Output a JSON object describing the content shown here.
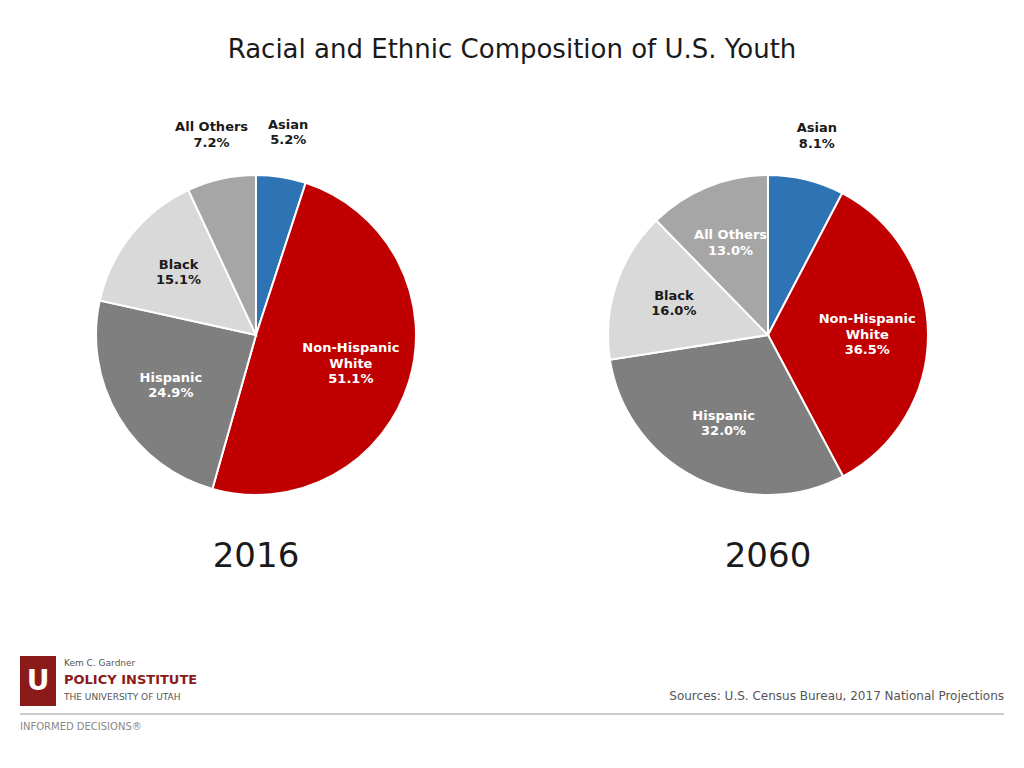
{
  "title": "Racial and Ethnic Composition of U.S. Youth",
  "annotations": [
    "Sources: U.S. Census Bureau, 2017 National Projections",
    "INFORMED DECISIONS®",
    "U",
    "Kem C. Gardner",
    "POLICY INSTITUTE",
    "THE UNIVERSITY OF UTAH"
  ],
  "chart_data": [
    {
      "type": "pie",
      "title": "2016",
      "categories": [
        "Asian",
        "Non-Hispanic\nWhite",
        "Hispanic",
        "Black",
        "All Others"
      ],
      "values": [
        5.2,
        51.1,
        24.9,
        15.1,
        7.2
      ],
      "value_labels": [
        "5.2%",
        "51.1%",
        "24.9%",
        "15.1%",
        "7.2%"
      ],
      "colors": [
        "#2e74b5",
        "#c00000",
        "#7f7f7f",
        "#d9d9d9",
        "#a6a6a6"
      ],
      "data_labels": true
    },
    {
      "type": "pie",
      "title": "2060",
      "categories": [
        "Asian",
        "Non-Hispanic\nWhite",
        "Hispanic",
        "Black",
        "All Others"
      ],
      "values": [
        8.1,
        36.5,
        32.0,
        16.0,
        13.0
      ],
      "value_labels": [
        "8.1%",
        "36.5%",
        "32.0%",
        "16.0%",
        "13.0%"
      ],
      "colors": [
        "#2e74b5",
        "#c00000",
        "#7f7f7f",
        "#d9d9d9",
        "#a6a6a6"
      ],
      "data_labels": true
    }
  ]
}
